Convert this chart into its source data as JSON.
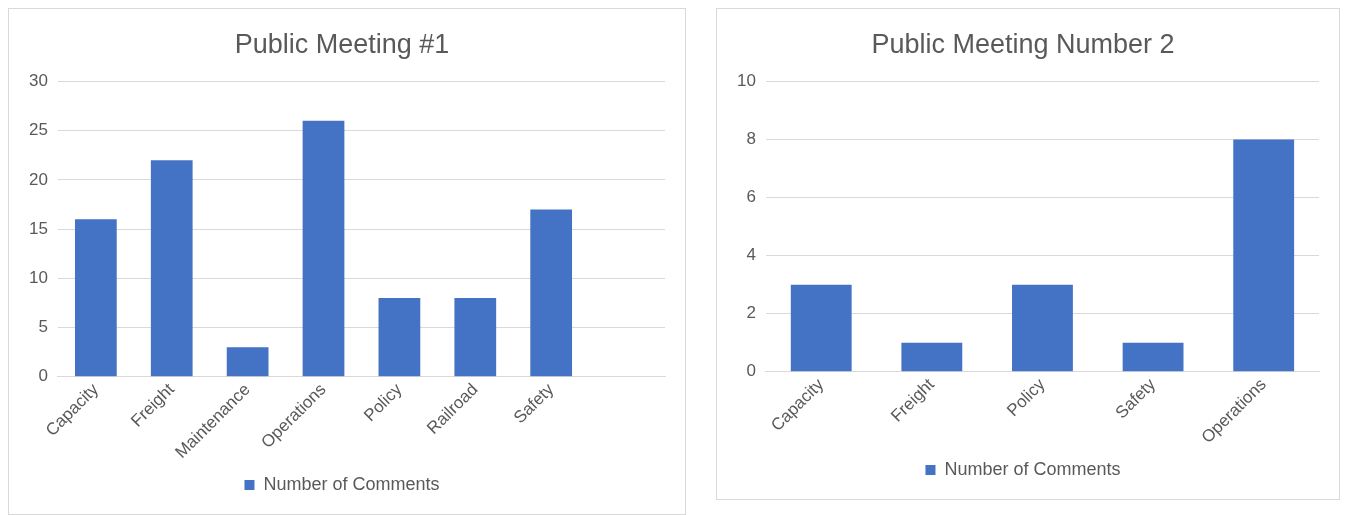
{
  "chart_data": [
    {
      "type": "bar",
      "title": "Public Meeting #1",
      "categories": [
        "Capacity",
        "Freight",
        "Maintenance",
        "Operations",
        "Policy",
        "Railroad",
        "Safety",
        null
      ],
      "series": [
        {
          "name": "Number of Comments",
          "color": "#4472c4",
          "values": [
            16,
            22,
            3,
            26,
            8,
            8,
            17,
            null
          ]
        }
      ],
      "ylim": [
        0,
        30
      ],
      "yticks": [
        0,
        5,
        10,
        15,
        20,
        25,
        30
      ],
      "grid": "y",
      "legend": "bottom"
    },
    {
      "type": "bar",
      "title": "Public Meeting Number 2",
      "categories": [
        "Capacity",
        "Freight",
        "Policy",
        "Safety",
        "Operations"
      ],
      "series": [
        {
          "name": "Number of Comments",
          "color": "#4472c4",
          "values": [
            3,
            1,
            3,
            1,
            8
          ]
        }
      ],
      "ylim": [
        0,
        10
      ],
      "yticks": [
        0,
        2,
        4,
        6,
        8,
        10
      ],
      "grid": "y",
      "legend": "bottom"
    }
  ]
}
